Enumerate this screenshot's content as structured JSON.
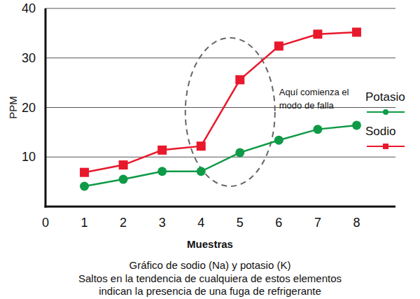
{
  "chart_data": {
    "type": "line",
    "title": "Gráfico de sodio (Na) y potasio (K)",
    "subtitle": [
      "Saltos en la tendencia de cualquiera de estos elementos",
      "indican la presencia de una fuga de refrigerante"
    ],
    "x_label": "Muestras",
    "y_label": "PPM",
    "annotation": [
      "Aquí comienza el",
      "modo de falla"
    ],
    "x": [
      1,
      2,
      3,
      4,
      5,
      6,
      7,
      8
    ],
    "xlim": [
      0,
      9
    ],
    "xticks": [
      0,
      1,
      2,
      3,
      4,
      5,
      6,
      7,
      8
    ],
    "ylim": [
      0,
      40
    ],
    "yticks": [
      10,
      20,
      30,
      40
    ],
    "grid": true,
    "legend": "right",
    "series": [
      {
        "name": "Potasio",
        "color": "#0f9a47",
        "marker": "circle",
        "values": [
          4.1,
          5.5,
          7.1,
          7.1,
          10.9,
          13.4,
          15.6,
          16.4
        ]
      },
      {
        "name": "Sodio",
        "color": "#e8192c",
        "marker": "square",
        "values": [
          6.9,
          8.4,
          11.4,
          12.2,
          25.6,
          32.4,
          34.8,
          35.2
        ]
      }
    ]
  }
}
